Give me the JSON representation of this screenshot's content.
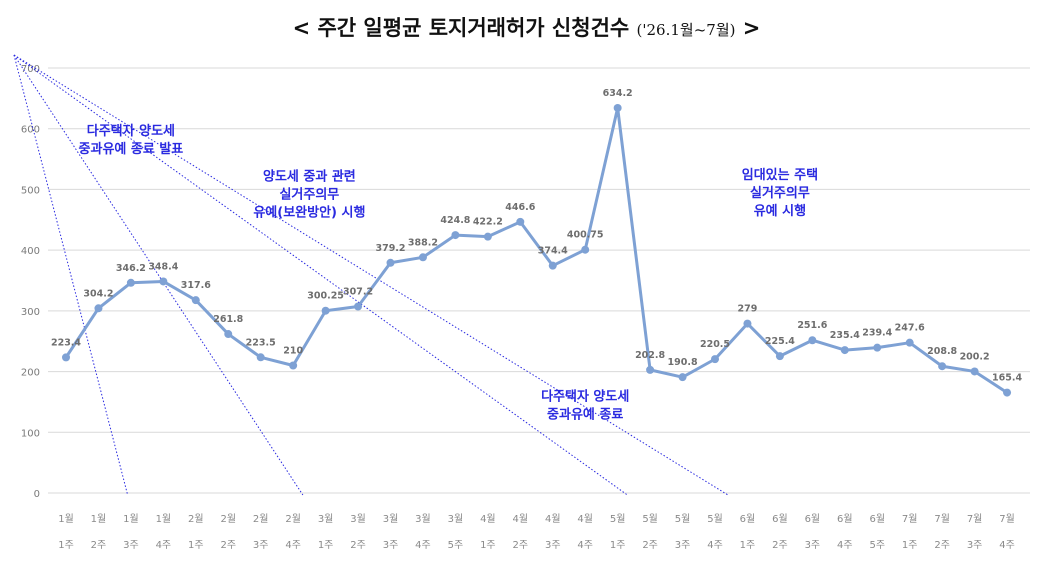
{
  "title": {
    "main": "< 주간 일평균 토지거래허가 신청건수",
    "sub": "('26.1월~7월)",
    "end": ">"
  },
  "chart_data": {
    "type": "line",
    "ylim": [
      0,
      700
    ],
    "yticks": [
      0,
      100,
      200,
      300,
      400,
      500,
      600,
      700
    ],
    "grid": true,
    "line_color": "#7ea1d4",
    "annotation_color": "#2a2ae0",
    "categories": [
      [
        "1월",
        "1주"
      ],
      [
        "1월",
        "2주"
      ],
      [
        "1월",
        "3주"
      ],
      [
        "1월",
        "4주"
      ],
      [
        "2월",
        "1주"
      ],
      [
        "2월",
        "2주"
      ],
      [
        "2월",
        "3주"
      ],
      [
        "2월",
        "4주"
      ],
      [
        "3월",
        "1주"
      ],
      [
        "3월",
        "2주"
      ],
      [
        "3월",
        "3주"
      ],
      [
        "3월",
        "4주"
      ],
      [
        "3월",
        "5주"
      ],
      [
        "4월",
        "1주"
      ],
      [
        "4월",
        "2주"
      ],
      [
        "4월",
        "3주"
      ],
      [
        "4월",
        "4주"
      ],
      [
        "5월",
        "1주"
      ],
      [
        "5월",
        "2주"
      ],
      [
        "5월",
        "3주"
      ],
      [
        "5월",
        "4주"
      ],
      [
        "6월",
        "1주"
      ],
      [
        "6월",
        "2주"
      ],
      [
        "6월",
        "3주"
      ],
      [
        "6월",
        "4주"
      ],
      [
        "6월",
        "5주"
      ],
      [
        "7월",
        "1주"
      ],
      [
        "7월",
        "2주"
      ],
      [
        "7월",
        "3주"
      ],
      [
        "7월",
        "4주"
      ]
    ],
    "values": [
      223.4,
      304.2,
      346.2,
      348.4,
      317.6,
      261.8,
      223.5,
      210,
      300.25,
      307.2,
      379.2,
      388.2,
      424.8,
      422.2,
      446.6,
      374.4,
      400.75,
      634.2,
      202.8,
      190.8,
      220.5,
      279,
      225.4,
      251.6,
      235.4,
      239.4,
      247.6,
      208.8,
      200.2,
      165.4
    ],
    "data_labels": [
      "223.4",
      "304.2",
      "346.2",
      "348.4",
      "317.6",
      "261.8",
      "223.5",
      "210",
      "300.25",
      "307.2",
      "379.2",
      "388.2",
      "424.8",
      "422.2",
      "446.6",
      "374.4",
      "400.75",
      "634.2",
      "202.8",
      "190.8",
      "220.5",
      "279",
      "225.4",
      "251.6",
      "235.4",
      "239.4",
      "247.6",
      "208.8",
      "200.2",
      "165.4"
    ],
    "annotations": [
      {
        "lines": [
          "다주택자 양도세",
          "중과유예 종료 발표"
        ],
        "at_index": 2,
        "level": 590
      },
      {
        "lines": [
          "양도세 중과 관련",
          "실거주의무",
          "유예(보완방안) 시행"
        ],
        "at_index": 7.5,
        "level": 515
      },
      {
        "lines": [
          "다주택자 양도세",
          "중과유예 종료"
        ],
        "at_index": 16,
        "level": 152
      },
      {
        "lines": [
          "임대있는 주택",
          "실거주의무",
          "유예 시행"
        ],
        "at_index": 22,
        "level": 517
      }
    ]
  }
}
